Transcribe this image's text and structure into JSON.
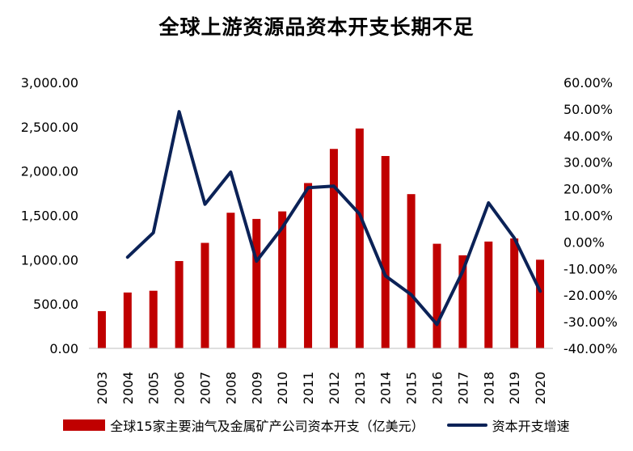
{
  "title": "全球上游资源品资本开支长期不足",
  "chart_data": {
    "type": "bar+line",
    "title": "全球上游资源品资本开支长期不足",
    "categories": [
      "2003",
      "2004",
      "2005",
      "2006",
      "2007",
      "2008",
      "2009",
      "2010",
      "2011",
      "2012",
      "2013",
      "2014",
      "2015",
      "2016",
      "2017",
      "2018",
      "2019",
      "2020"
    ],
    "series": [
      {
        "name": "全球15家主要油气及金属矿产公司资本开支（亿美元）",
        "type": "bar",
        "axis": "left",
        "color": "#c00000",
        "values": [
          420,
          630,
          650,
          985,
          1190,
          1530,
          1460,
          1545,
          1865,
          2250,
          2480,
          2170,
          1740,
          1180,
          1050,
          1205,
          1240,
          1000
        ]
      },
      {
        "name": "资本开支增速",
        "type": "line",
        "axis": "right",
        "color": "#0b2257",
        "values": [
          null,
          -5.7,
          3.5,
          49.0,
          14.2,
          26.3,
          -7.2,
          5.4,
          20.4,
          21.0,
          10.5,
          -12.7,
          -19.8,
          -31.0,
          -11.0,
          14.7,
          1.5,
          -18.5
        ]
      }
    ],
    "y_left": {
      "ylim": [
        0,
        3000
      ],
      "ticks": [
        0,
        500,
        1000,
        1500,
        2000,
        2500,
        3000
      ],
      "tick_labels": [
        "0.00",
        "500.00",
        "1,000.00",
        "1,500.00",
        "2,000.00",
        "2,500.00",
        "3,000.00"
      ]
    },
    "y_right": {
      "ylim": [
        -40,
        60
      ],
      "ticks": [
        -40,
        -30,
        -20,
        -10,
        0,
        10,
        20,
        30,
        40,
        50,
        60
      ],
      "tick_labels": [
        "-40.00%",
        "-30.00%",
        "-20.00%",
        "-10.00%",
        "0.00%",
        "10.00%",
        "20.00%",
        "30.00%",
        "40.00%",
        "50.00%",
        "60.00%"
      ]
    },
    "grid": false,
    "legend_position": "bottom"
  }
}
